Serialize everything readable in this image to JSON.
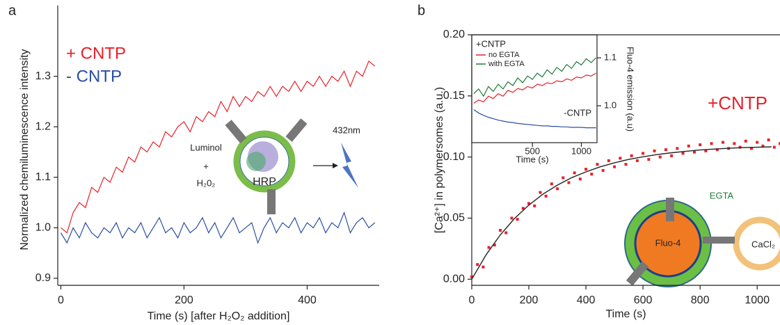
{
  "chart_data": [
    {
      "type": "line",
      "panel_label": "a",
      "xlabel": "Time (s) [after H₂O₂ addition]",
      "ylabel": "Normalized chemiluminescence intensity",
      "x": [
        0,
        10,
        20,
        30,
        40,
        50,
        60,
        70,
        80,
        90,
        100,
        110,
        120,
        130,
        140,
        150,
        160,
        170,
        180,
        190,
        200,
        210,
        220,
        230,
        240,
        250,
        260,
        270,
        280,
        290,
        300,
        310,
        320,
        330,
        340,
        350,
        360,
        370,
        380,
        390,
        400,
        410,
        420,
        430,
        440,
        450,
        460,
        470,
        480,
        490,
        500,
        510
      ],
      "series": [
        {
          "name": "+ CNTP",
          "color": "#e8202a",
          "values": [
            1.0,
            0.99,
            1.03,
            1.05,
            1.04,
            1.08,
            1.07,
            1.1,
            1.09,
            1.12,
            1.11,
            1.14,
            1.13,
            1.16,
            1.15,
            1.17,
            1.16,
            1.19,
            1.18,
            1.2,
            1.21,
            1.19,
            1.22,
            1.21,
            1.23,
            1.22,
            1.25,
            1.23,
            1.26,
            1.24,
            1.26,
            1.25,
            1.27,
            1.26,
            1.28,
            1.26,
            1.28,
            1.27,
            1.29,
            1.27,
            1.29,
            1.28,
            1.3,
            1.28,
            1.3,
            1.29,
            1.31,
            1.28,
            1.31,
            1.3,
            1.33,
            1.32
          ]
        },
        {
          "name": "- CNTP",
          "color": "#2b4ea2",
          "values": [
            0.99,
            0.97,
            1.0,
            0.98,
            1.01,
            0.99,
            0.98,
            1.0,
            0.99,
            1.01,
            0.98,
            1.0,
            0.99,
            1.01,
            0.98,
            1.0,
            1.02,
            0.99,
            1.0,
            0.98,
            1.01,
            0.99,
            1.0,
            1.02,
            0.99,
            1.01,
            0.98,
            1.0,
            1.02,
            0.99,
            1.0,
            1.01,
            0.97,
            1.0,
            1.02,
            0.99,
            1.01,
            1.0,
            1.02,
            0.99,
            1.01,
            1.0,
            1.02,
            0.99,
            1.01,
            1.0,
            1.03,
            0.99,
            1.01,
            1.02,
            1.0,
            1.01
          ]
        }
      ],
      "xlim": [
        -5,
        517
      ],
      "ylim": [
        0.886,
        1.44
      ],
      "xticks": [
        0,
        200,
        400
      ],
      "yticks": [
        0.9,
        {
          "value": 1,
          "label": "1.0"
        },
        1.1,
        1.2,
        1.3
      ],
      "annotations": [
        "Luminol",
        "+",
        "H₂0₂",
        "HRP",
        "432nm"
      ]
    },
    {
      "type": "scatter",
      "panel_label": "b",
      "xlabel": "Time (s)",
      "ylabel": "[Ca²⁺] in polymersomes (a.u.)",
      "x": [
        0,
        20,
        40,
        60,
        80,
        100,
        120,
        140,
        160,
        180,
        200,
        220,
        240,
        260,
        280,
        300,
        320,
        340,
        360,
        380,
        400,
        420,
        440,
        460,
        480,
        500,
        520,
        540,
        560,
        580,
        600,
        620,
        640,
        660,
        680,
        700,
        720,
        740,
        760,
        780,
        800,
        820,
        840,
        860,
        880,
        900,
        920,
        940,
        960,
        980,
        1000,
        1020,
        1040,
        1060,
        1080
      ],
      "series": [
        {
          "name": "+CNTP",
          "color": "#e8202a",
          "values": [
            0.002,
            0.012,
            0.01,
            0.026,
            0.028,
            0.04,
            0.038,
            0.05,
            0.049,
            0.058,
            0.062,
            0.06,
            0.071,
            0.068,
            0.078,
            0.074,
            0.083,
            0.079,
            0.087,
            0.082,
            0.09,
            0.086,
            0.094,
            0.089,
            0.097,
            0.092,
            0.099,
            0.094,
            0.101,
            0.097,
            0.103,
            0.098,
            0.105,
            0.1,
            0.106,
            0.101,
            0.107,
            0.103,
            0.109,
            0.104,
            0.11,
            0.105,
            0.111,
            0.106,
            0.112,
            0.107,
            0.111,
            0.108,
            0.113,
            0.107,
            0.112,
            0.109,
            0.114,
            0.108,
            0.111
          ]
        }
      ],
      "fit": {
        "color": "#222222",
        "x": [
          0,
          50,
          100,
          150,
          200,
          250,
          300,
          350,
          400,
          450,
          500,
          550,
          600,
          650,
          700,
          750,
          800,
          850,
          900,
          950,
          1000,
          1050
        ],
        "values": [
          0,
          0.0199,
          0.0363,
          0.0497,
          0.0606,
          0.0697,
          0.077,
          0.0831,
          0.0878,
          0.092,
          0.0953,
          0.098,
          0.1002,
          0.102,
          0.1035,
          0.1047,
          0.1058,
          0.1065,
          0.1071,
          0.1077,
          0.108,
          0.1083
        ]
      },
      "xlim": [
        0,
        1080
      ],
      "ylim": [
        -0.005,
        0.2
      ],
      "xticks": [
        0,
        200,
        400,
        600,
        800,
        1000
      ],
      "yticks": [
        {
          "value": 0,
          "label": "0.00"
        },
        0.05,
        {
          "value": 0.1,
          "label": "0.10"
        },
        0.15,
        {
          "value": 0.2,
          "label": "0.20"
        }
      ],
      "annotations": [
        "EGTA",
        "Fluo-4",
        "CaCl₂"
      ],
      "inset": {
        "type": "line",
        "legend_title": "+CNTP",
        "xlabel": "Time (s)",
        "y2label": "Fluo-4 emission (a.u)",
        "x": [
          -100,
          -50,
          0,
          50,
          100,
          150,
          200,
          250,
          300,
          350,
          400,
          450,
          500,
          550,
          600,
          650,
          700,
          750,
          800,
          850,
          900,
          950,
          1000,
          1050,
          1100,
          1150
        ],
        "series": [
          {
            "name": "no EGTA",
            "color": "#e8202a",
            "axis": "y2",
            "values": [
              1.005,
              1.012,
              1.008,
              1.02,
              1.015,
              1.025,
              1.02,
              1.032,
              1.028,
              1.036,
              1.033,
              1.04,
              1.037,
              1.045,
              1.042,
              1.048,
              1.046,
              1.052,
              1.05,
              1.056,
              1.053,
              1.06,
              1.058,
              1.064,
              1.062,
              1.068
            ]
          },
          {
            "name": "with EGTA",
            "color": "#1f7a3a",
            "axis": "y2",
            "values": [
              1.025,
              1.035,
              1.02,
              1.04,
              1.03,
              1.045,
              1.035,
              1.05,
              1.042,
              1.058,
              1.048,
              1.062,
              1.055,
              1.068,
              1.06,
              1.075,
              1.066,
              1.08,
              1.072,
              1.086,
              1.078,
              1.092,
              1.085,
              1.098,
              1.09,
              1.1
            ]
          },
          {
            "name": "-CNTP",
            "color": "#2b4ea2",
            "axis": "y2",
            "values": [
              0.992,
              0.985,
              0.98,
              0.976,
              0.973,
              0.97,
              0.968,
              0.966,
              0.965,
              0.963,
              0.962,
              0.961,
              0.96,
              0.959,
              0.958,
              0.958,
              0.957,
              0.957,
              0.956,
              0.956,
              0.955,
              0.955,
              0.955,
              0.954,
              0.954,
              0.954
            ]
          }
        ],
        "xlim": [
          -120,
          1160
        ],
        "y2lim": [
          0.923,
          1.148
        ],
        "xticks": [
          500,
          1000
        ],
        "y2ticks": [
          {
            "value": 1,
            "label": "1.0"
          },
          1.1
        ]
      }
    }
  ]
}
